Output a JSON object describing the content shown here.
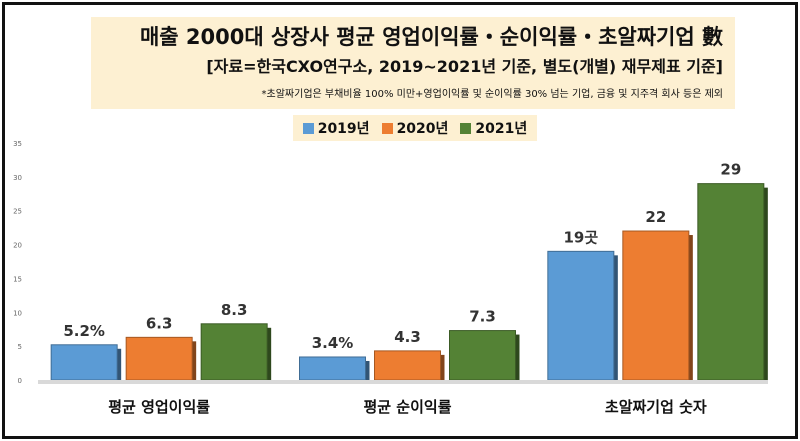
{
  "title": "매출 2000대 상장사 평균 영업이익률・순이익률・초알짜기업 數",
  "subtitle": "[자료=한국CXO연구소, 2019~2021년 기준, 별도(개별) 재무제표 기준]",
  "note": "*초알짜기업은 부채비율 100% 미만+영업이익률 및 순이익률 30% 넘는 기업, 금융 및 지주격 회사 등은 제외",
  "chart_data": {
    "type": "bar",
    "title": "매출 2000대 상장사 평균 영업이익률・순이익률・초알짜기업 數",
    "categories": [
      "평균 영업이익률",
      "평균 순이익률",
      "초알짜기업 숫자"
    ],
    "series": [
      {
        "name": "2019년",
        "color": "#5b9bd5",
        "values": [
          5.2,
          3.4,
          19
        ],
        "labels": [
          "5.2%",
          "3.4%",
          "19곳"
        ]
      },
      {
        "name": "2020년",
        "color": "#ed7d31",
        "values": [
          6.3,
          4.3,
          22
        ],
        "labels": [
          "6.3",
          "4.3",
          "22"
        ]
      },
      {
        "name": "2021년",
        "color": "#548235",
        "values": [
          8.3,
          7.3,
          29
        ],
        "labels": [
          "8.3",
          "7.3",
          "29"
        ]
      }
    ],
    "ylim": [
      0,
      35
    ],
    "yticks": [
      0,
      5,
      10,
      15,
      20,
      25,
      30,
      35
    ],
    "grid": false,
    "legend": "top"
  }
}
